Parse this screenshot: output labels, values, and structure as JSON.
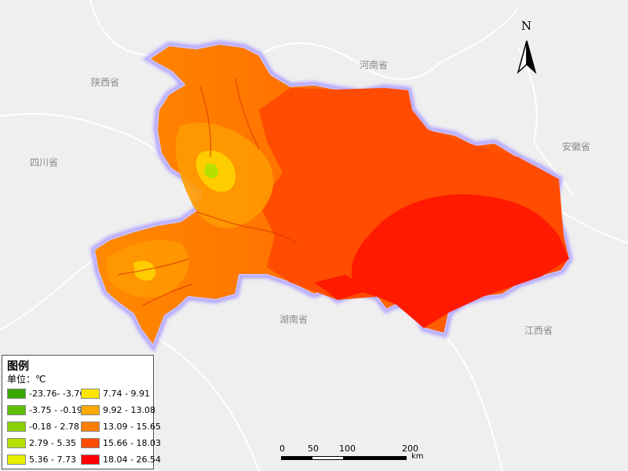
{
  "map": {
    "province_labels": {
      "shaanxi": "陕西省",
      "henan": "河南省",
      "sichuan": "四川省",
      "anhui": "安徽省",
      "hunan": "湖南省",
      "jiangxi": "江西省"
    },
    "north_label": "N"
  },
  "legend": {
    "title": "图例",
    "unit": "单位：℃",
    "items": [
      {
        "label": "-23.76- -3.76",
        "color": "#38a800"
      },
      {
        "label": "-3.75 - -0.19",
        "color": "#5ebf00"
      },
      {
        "label": "-0.18 - 2.78",
        "color": "#8ad100"
      },
      {
        "label": "2.79 - 5.35",
        "color": "#b6e100"
      },
      {
        "label": "5.36 - 7.73",
        "color": "#e6f000"
      },
      {
        "label": "7.74 - 9.91",
        "color": "#ffe600"
      },
      {
        "label": "9.92 - 13.08",
        "color": "#ffaa00"
      },
      {
        "label": "13.09 - 15.65",
        "color": "#ff7f00"
      },
      {
        "label": "15.66 - 18.03",
        "color": "#ff4c00"
      },
      {
        "label": "18.04 - 26.54",
        "color": "#ff0000"
      }
    ]
  },
  "scale": {
    "ticks": [
      "0",
      "50",
      "100",
      "200"
    ],
    "unit": "km"
  }
}
